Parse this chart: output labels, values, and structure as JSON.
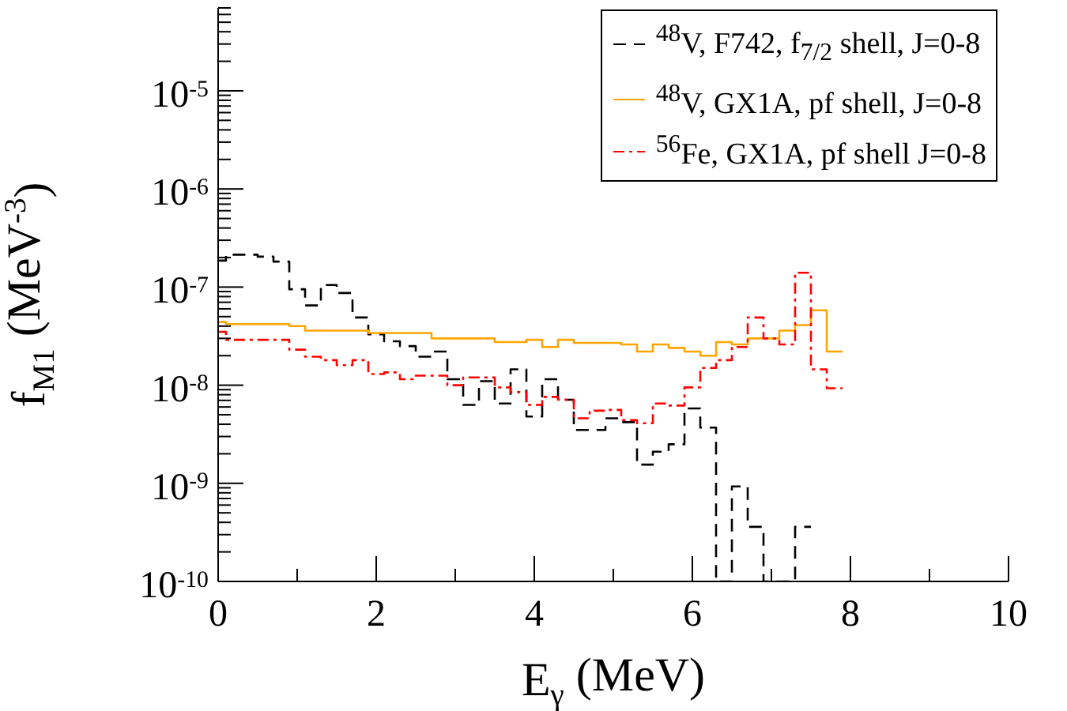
{
  "chart_data": {
    "type": "step",
    "xlabel": "E$_{γ}$ (MeV)",
    "ylabel": "f$_{M1}$ (MeV$^{-3}$)",
    "xlim": [
      0,
      10
    ],
    "xticks": [
      0,
      {
        "value": 1,
        "label": null
      },
      2,
      {
        "value": 3,
        "label": null
      },
      4,
      {
        "value": 5,
        "label": null
      },
      6,
      {
        "value": 7,
        "label": null
      },
      8,
      {
        "value": 9,
        "label": null
      },
      10
    ],
    "ylim": [
      1e-10,
      7e-05
    ],
    "log": true,
    "yticks": [
      {
        "value": 1e-10,
        "label": "10$^{-10}$"
      },
      {
        "value": 2e-10,
        "label": null
      },
      {
        "value": 3e-10,
        "label": null
      },
      {
        "value": 4e-10,
        "label": null
      },
      {
        "value": 5e-10,
        "label": null
      },
      {
        "value": 6e-10,
        "label": null
      },
      {
        "value": 7e-10,
        "label": null
      },
      {
        "value": 8e-10,
        "label": null
      },
      {
        "value": 9e-10,
        "label": null
      },
      {
        "value": 1e-09,
        "label": "10$^{-9}$"
      },
      {
        "value": 2e-09,
        "label": null
      },
      {
        "value": 3e-09,
        "label": null
      },
      {
        "value": 4e-09,
        "label": null
      },
      {
        "value": 5e-09,
        "label": null
      },
      {
        "value": 6e-09,
        "label": null
      },
      {
        "value": 7e-09,
        "label": null
      },
      {
        "value": 8e-09,
        "label": null
      },
      {
        "value": 9e-09,
        "label": null
      },
      {
        "value": 1e-08,
        "label": "10$^{-8}$"
      },
      {
        "value": 2e-08,
        "label": null
      },
      {
        "value": 3e-08,
        "label": null
      },
      {
        "value": 4e-08,
        "label": null
      },
      {
        "value": 5e-08,
        "label": null
      },
      {
        "value": 6e-08,
        "label": null
      },
      {
        "value": 7e-08,
        "label": null
      },
      {
        "value": 8e-08,
        "label": null
      },
      {
        "value": 9e-08,
        "label": null
      },
      {
        "value": 1e-07,
        "label": "10$^{-7}$"
      },
      {
        "value": 2e-07,
        "label": null
      },
      {
        "value": 3e-07,
        "label": null
      },
      {
        "value": 4e-07,
        "label": null
      },
      {
        "value": 5e-07,
        "label": null
      },
      {
        "value": 6e-07,
        "label": null
      },
      {
        "value": 7e-07,
        "label": null
      },
      {
        "value": 8e-07,
        "label": null
      },
      {
        "value": 9e-07,
        "label": null
      },
      {
        "value": 1e-06,
        "label": "10$^{-6}$"
      },
      {
        "value": 2e-06,
        "label": null
      },
      {
        "value": 3e-06,
        "label": null
      },
      {
        "value": 4e-06,
        "label": null
      },
      {
        "value": 5e-06,
        "label": null
      },
      {
        "value": 6e-06,
        "label": null
      },
      {
        "value": 7e-06,
        "label": null
      },
      {
        "value": 8e-06,
        "label": null
      },
      {
        "value": 9e-06,
        "label": null
      },
      {
        "value": 1e-05,
        "label": "10$^{-5}$"
      },
      {
        "value": 2e-05,
        "label": null
      },
      {
        "value": 3e-05,
        "label": null
      },
      {
        "value": 4e-05,
        "label": null
      },
      {
        "value": 5e-05,
        "label": null
      },
      {
        "value": 6e-05,
        "label": null
      },
      {
        "value": 7e-05,
        "label": null
      }
    ],
    "grid": false,
    "legend": "top right",
    "marker": "none",
    "series": [
      {
        "name": "$^{48}$V, F742, f$_{7/2}$ shell, J=0-8",
        "color": "#000000",
        "line_style": "dashed",
        "x": [
          0,
          0.1,
          0.3,
          0.5,
          0.7,
          0.9,
          1.1,
          1.3,
          1.5,
          1.7,
          1.9,
          2.1,
          2.3,
          2.5,
          2.7,
          2.9,
          3.1,
          3.3,
          3.5,
          3.7,
          3.9,
          4.1,
          4.3,
          4.5,
          4.7,
          4.9,
          5.1,
          5.3,
          5.5,
          5.7,
          5.9,
          6.1,
          6.3,
          6.5,
          6.7,
          6.9,
          7.1,
          7.3,
          7.5
        ],
        "values": [
          1.86e-07,
          2.14e-07,
          2.14e-07,
          2.04e-07,
          1.82e-07,
          9.5e-08,
          6.5e-08,
          1.05e-07,
          8.7e-08,
          4.9e-08,
          3.3e-08,
          2.8e-08,
          2.5e-08,
          1.95e-08,
          2.2e-08,
          1.15e-08,
          6.3e-09,
          1.1e-08,
          6.5e-09,
          1.45e-08,
          4.8e-09,
          1.15e-08,
          7.1e-09,
          3.5e-09,
          3.5e-09,
          4.6e-09,
          4.2e-09,
          1.55e-09,
          2.1e-09,
          2.5e-09,
          5.8e-09,
          3.7e-09,
          1e-10,
          9.3e-10,
          3.6e-10,
          1e-10,
          1e-10,
          3.6e-10,
          3.6e-10
        ]
      },
      {
        "name": "$^{48}$V, GX1A, pf shell, J=0-8",
        "color": "#ffa500",
        "line_style": "solid",
        "x": [
          0,
          0.1,
          0.9,
          1.1,
          1.9,
          2.7,
          3.5,
          3.9,
          4.1,
          4.3,
          4.5,
          5.1,
          5.3,
          5.5,
          5.7,
          5.9,
          6.1,
          6.3,
          6.5,
          6.7,
          7.1,
          7.3,
          7.5,
          7.7,
          7.9
        ],
        "values": [
          4.4e-08,
          4.2e-08,
          4e-08,
          3.6e-08,
          3.4e-08,
          3e-08,
          2.75e-08,
          2.9e-08,
          2.45e-08,
          2.9e-08,
          2.7e-08,
          2.6e-08,
          2.2e-08,
          2.6e-08,
          2.4e-08,
          2.2e-08,
          2e-08,
          2.75e-08,
          2.6e-08,
          3e-08,
          3.6e-08,
          4.1e-08,
          5.8e-08,
          2.2e-08,
          2.2e-08
        ]
      },
      {
        "name": "$^{56}$Fe, GX1A, pf shell J=0-8",
        "color": "#ff0000",
        "line_style": "dashdot",
        "x": [
          0,
          0.1,
          0.9,
          1.1,
          1.3,
          1.5,
          1.7,
          1.9,
          2.1,
          2.3,
          2.5,
          2.9,
          3.1,
          3.5,
          3.7,
          3.9,
          4.1,
          4.3,
          4.5,
          4.7,
          4.9,
          5.1,
          5.3,
          5.5,
          5.7,
          5.9,
          6.1,
          6.3,
          6.5,
          6.7,
          6.9,
          7.1,
          7.3,
          7.5,
          7.7,
          7.9
        ],
        "values": [
          3.5e-08,
          2.9e-08,
          2.3e-08,
          1.95e-08,
          1.8e-08,
          1.6e-08,
          1.8e-08,
          1.3e-08,
          1.35e-08,
          1.15e-08,
          1.25e-08,
          1e-08,
          1.2e-08,
          9.5e-09,
          8.5e-09,
          6.3e-09,
          7.6e-09,
          7.1e-09,
          4.6e-09,
          5.5e-09,
          5.6e-09,
          4.4e-09,
          4.1e-09,
          6.5e-09,
          6.2e-09,
          9.5e-09,
          1.5e-08,
          1.8e-08,
          2.45e-08,
          4.9e-08,
          3e-08,
          2.6e-08,
          1.4e-07,
          1.45e-08,
          9.3e-09,
          9.3e-09
        ]
      }
    ]
  }
}
